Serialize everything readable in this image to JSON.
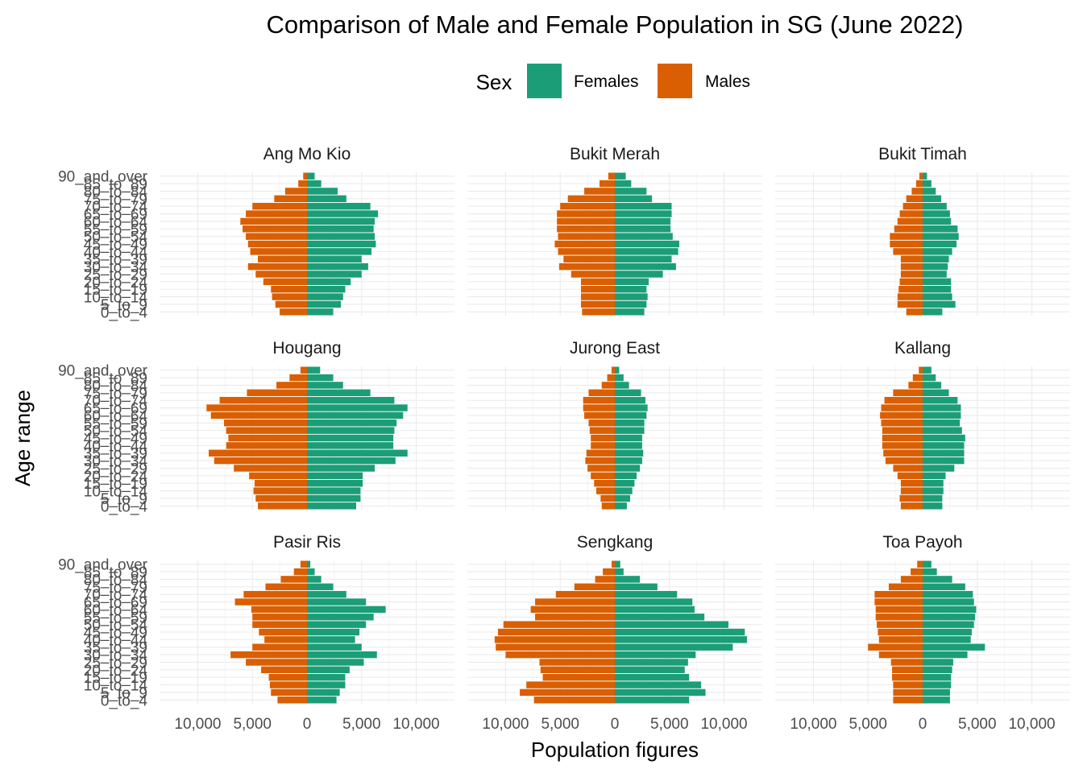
{
  "chart_data": {
    "type": "bar",
    "subtype": "population-pyramid-facets",
    "title": "Comparison of Male and Female Population in SG (June 2022)",
    "xlabel": "Population figures",
    "ylabel": "Age range",
    "legend": {
      "title": "Sex",
      "placement": "top"
    },
    "colors": {
      "Females": "#1b9e77",
      "Males": "#d95f02"
    },
    "grid": true,
    "xlim": [
      -13500,
      13500
    ],
    "x_ticks": [
      {
        "value": -10000,
        "label": "10,000"
      },
      {
        "value": -5000,
        "label": "5,000"
      },
      {
        "value": 0,
        "label": "0"
      },
      {
        "value": 5000,
        "label": "5,000"
      },
      {
        "value": 10000,
        "label": "10,000"
      }
    ],
    "age_groups": [
      "0_to_4",
      "5_to_9",
      "10_to_14",
      "15_to_19",
      "20_to_24",
      "25_to_29",
      "30_to_34",
      "35_to_39",
      "40_to_44",
      "45_to_49",
      "50_to_54",
      "55_to_59",
      "60_to_64",
      "65_to_69",
      "70_to_74",
      "75_to_79",
      "80_to_84",
      "85_to_89",
      "90_and_over"
    ],
    "series_order": [
      "Females",
      "Males"
    ],
    "facets": [
      {
        "name": "Ang Mo Kio",
        "Males": [
          2500,
          2900,
          3200,
          3300,
          4000,
          4700,
          5400,
          4500,
          5200,
          5400,
          5600,
          5900,
          6100,
          5600,
          5000,
          3000,
          2000,
          800,
          350
        ],
        "Females": [
          2400,
          3100,
          3300,
          3500,
          4000,
          5000,
          5600,
          5000,
          5900,
          6300,
          6200,
          6100,
          6200,
          6500,
          5800,
          3600,
          2800,
          1300,
          700
        ]
      },
      {
        "name": "Bukit Merah",
        "Males": [
          3000,
          3100,
          3100,
          3100,
          3100,
          4000,
          5100,
          4700,
          5200,
          5500,
          5200,
          5300,
          5300,
          5300,
          5000,
          4300,
          2800,
          1400,
          600
        ],
        "Females": [
          2700,
          2900,
          3000,
          2900,
          3100,
          4400,
          5600,
          5200,
          5800,
          5900,
          5300,
          5100,
          5100,
          5200,
          5200,
          3400,
          2900,
          1500,
          1000
        ]
      },
      {
        "name": "Bukit Timah",
        "Males": [
          1500,
          2300,
          2300,
          2200,
          2100,
          2000,
          2000,
          2000,
          2700,
          3000,
          3000,
          2600,
          2300,
          2100,
          1800,
          1500,
          1000,
          600,
          300
        ],
        "Females": [
          1800,
          3000,
          2700,
          2600,
          2600,
          2200,
          2300,
          2400,
          2700,
          3100,
          3300,
          3200,
          2600,
          2500,
          2200,
          1700,
          1200,
          800,
          400
        ]
      },
      {
        "name": "Hougang",
        "Males": [
          4500,
          4700,
          4900,
          4800,
          5300,
          6700,
          8500,
          9000,
          7400,
          7200,
          7400,
          7600,
          8800,
          9200,
          8000,
          5500,
          2800,
          1600,
          600
        ],
        "Females": [
          4500,
          4900,
          4900,
          5100,
          5100,
          6200,
          8100,
          9200,
          7900,
          7900,
          8000,
          8200,
          8800,
          9200,
          8000,
          5800,
          3300,
          2400,
          1200
        ]
      },
      {
        "name": "Jurong East",
        "Males": [
          1200,
          1300,
          1700,
          1900,
          2200,
          2500,
          2700,
          2600,
          2200,
          2200,
          2300,
          2400,
          2800,
          2900,
          2900,
          2400,
          1200,
          700,
          300
        ],
        "Females": [
          1100,
          1400,
          1600,
          1800,
          2000,
          2300,
          2500,
          2600,
          2500,
          2500,
          2700,
          2700,
          2900,
          3000,
          2800,
          2400,
          1300,
          800,
          400
        ]
      },
      {
        "name": "Kallang",
        "Males": [
          2000,
          2100,
          2000,
          2000,
          2300,
          2700,
          3400,
          3600,
          3700,
          3700,
          3700,
          3800,
          3900,
          3800,
          3500,
          2700,
          1300,
          900,
          350
        ],
        "Females": [
          1800,
          1800,
          1900,
          1900,
          2100,
          2900,
          3800,
          3800,
          3800,
          3900,
          3600,
          3400,
          3500,
          3500,
          3200,
          2400,
          1700,
          1200,
          800
        ]
      },
      {
        "name": "Pasir Ris",
        "Males": [
          2700,
          3300,
          3400,
          3500,
          4200,
          5600,
          7000,
          5000,
          3900,
          4400,
          5000,
          5000,
          5100,
          6600,
          5800,
          3800,
          2400,
          1200,
          600
        ],
        "Females": [
          2700,
          3000,
          3500,
          3500,
          3900,
          5200,
          6400,
          5000,
          4400,
          4800,
          5400,
          6100,
          7200,
          5400,
          3600,
          2400,
          1300,
          700,
          300
        ]
      },
      {
        "name": "Sengkang",
        "Males": [
          7400,
          8700,
          8100,
          6600,
          6800,
          6900,
          10000,
          10900,
          11000,
          10700,
          10200,
          7300,
          7700,
          7300,
          5400,
          3700,
          1800,
          1100,
          300
        ],
        "Females": [
          6800,
          8300,
          7900,
          6800,
          6400,
          6700,
          7400,
          10800,
          12100,
          11900,
          10400,
          8200,
          7300,
          7100,
          5700,
          3900,
          2300,
          800,
          500
        ]
      },
      {
        "name": "Toa Payoh",
        "Males": [
          2700,
          2700,
          2700,
          2800,
          2800,
          2900,
          4000,
          5000,
          4000,
          4100,
          4200,
          4300,
          4300,
          4400,
          4400,
          3100,
          2000,
          1100,
          500
        ],
        "Females": [
          2500,
          2500,
          2600,
          2600,
          2700,
          2800,
          4100,
          5700,
          4400,
          4500,
          4700,
          4800,
          4900,
          4700,
          4600,
          3900,
          2700,
          1300,
          800
        ]
      }
    ]
  }
}
